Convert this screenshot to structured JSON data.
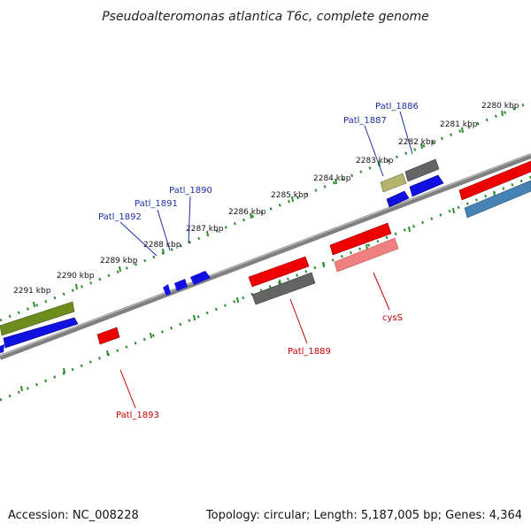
{
  "title": "Pseudoalteromonas atlantica T6c, complete genome",
  "footer": {
    "accession": "Accession: NC_008228",
    "topology": "Topology: circular; Length: 5,187,005 bp; Genes: 4,364"
  },
  "colors": {
    "tick": "#2e8b2e",
    "backbone": "#808080",
    "blue": "#1010e0",
    "red": "#ee0000",
    "pink": "#f08080",
    "gray": "#646464",
    "olive": "#6e8c1e",
    "khaki": "#b4b46e",
    "steel": "#4682b4"
  },
  "scale_ticks": [
    "2280 kbp",
    "2281 kbp",
    "2282 kbp",
    "2283 kbp",
    "2284 kbp",
    "2285 kbp",
    "2286 kbp",
    "2287 kbp",
    "2288 kbp",
    "2289 kbp",
    "2290 kbp",
    "2291 kbp"
  ],
  "gene_labels": {
    "patl_1886": "Patl_1886",
    "patl_1887": "Patl_1887",
    "patl_1890": "Patl_1890",
    "patl_1891": "Patl_1891",
    "patl_1892": "Patl_1892",
    "cyss": "cysS",
    "patl_1889": "Patl_1889",
    "patl_1893": "Patl_1893"
  }
}
